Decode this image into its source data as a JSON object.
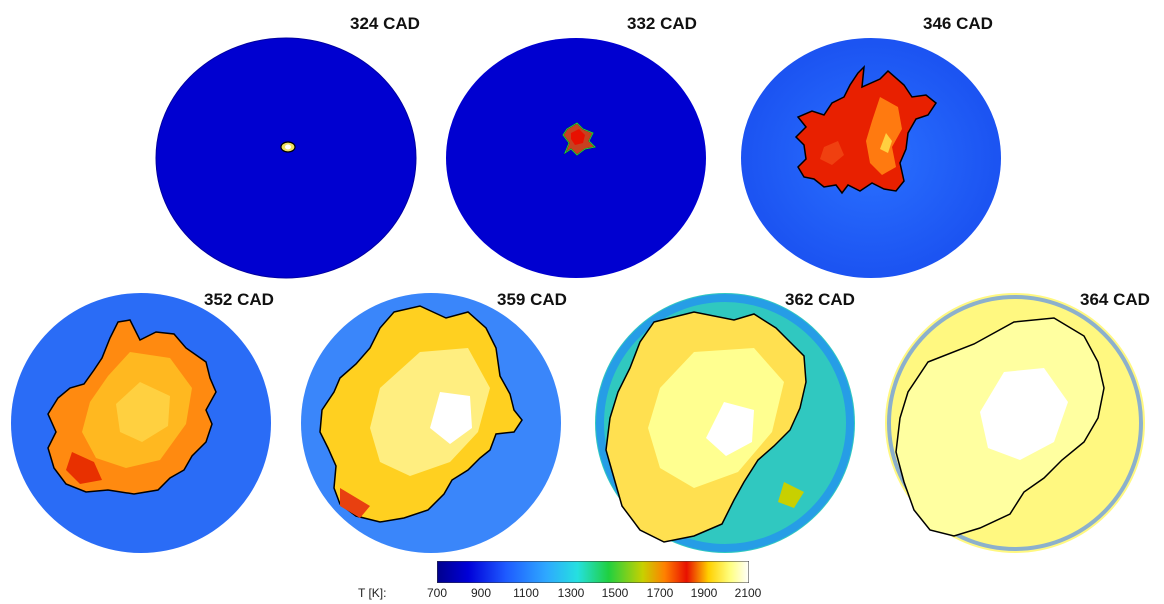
{
  "panels": [
    {
      "label": "324 CAD",
      "flame": "kernel-tiny"
    },
    {
      "label": "332 CAD",
      "flame": "kernel-small"
    },
    {
      "label": "346 CAD",
      "flame": "flame-early"
    },
    {
      "label": "352 CAD",
      "flame": "flame-mid"
    },
    {
      "label": "359 CAD",
      "flame": "flame-large"
    },
    {
      "label": "362 CAD",
      "flame": "flame-near-full"
    },
    {
      "label": "364 CAD",
      "flame": "flame-full"
    }
  ],
  "colorbar": {
    "title": "T [K]:",
    "ticks": [
      "700",
      "900",
      "1100",
      "1300",
      "1500",
      "1700",
      "1900",
      "2100"
    ],
    "colors": [
      "#00008c",
      "#0000d8",
      "#1e5aff",
      "#2ea8ff",
      "#25e0e0",
      "#20d040",
      "#c8d000",
      "#ff8000",
      "#e81000",
      "#ffd000",
      "#ffff80",
      "#ffffff"
    ]
  }
}
